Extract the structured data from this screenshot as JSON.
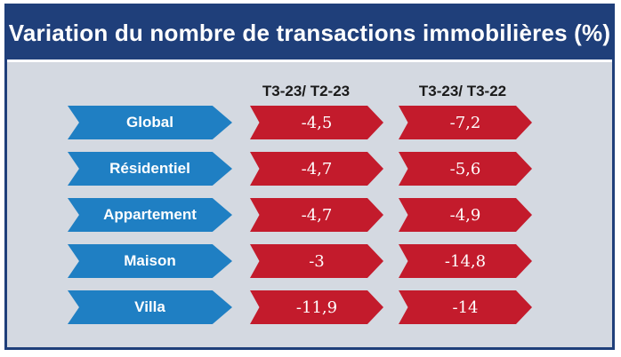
{
  "title": "Variation du nombre de transactions immobilières (%)",
  "colors": {
    "title_bg": "#1f3f7a",
    "label_arrow": "#1f7fc3",
    "value_arrow": "#c31b2c",
    "panel_bg": "#d4d9e1"
  },
  "chart_data": {
    "type": "table",
    "title": "Variation du nombre de transactions immobilières (%)",
    "columns": [
      "T3-23/ T2-23",
      "T3-23/ T3-22"
    ],
    "rows": [
      {
        "label": "Global",
        "values": [
          "-4,5",
          "-7,2"
        ]
      },
      {
        "label": "Résidentiel",
        "values": [
          "-4,7",
          "-5,6"
        ]
      },
      {
        "label": "Appartement",
        "values": [
          "-4,7",
          "-4,9"
        ]
      },
      {
        "label": "Maison",
        "values": [
          "-3",
          "-14,8"
        ]
      },
      {
        "label": "Villa",
        "values": [
          "-11,9",
          "-14"
        ]
      }
    ]
  }
}
